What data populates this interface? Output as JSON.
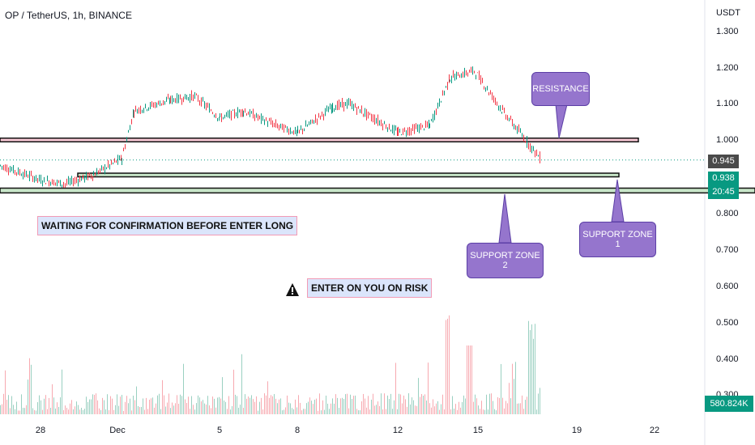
{
  "header": {
    "title": "OP / TetherUS, 1h, BINANCE"
  },
  "axis": {
    "unit": "USDT",
    "y_ticks": [
      "1.300",
      "1.200",
      "1.100",
      "1.000",
      "0.800",
      "0.700",
      "0.600",
      "0.500",
      "0.400",
      "0.300"
    ],
    "x_ticks": [
      "28",
      "Dec",
      "5",
      "8",
      "12",
      "15",
      "19",
      "22"
    ]
  },
  "badges": {
    "last_price": "0.945",
    "current_price": "0.938",
    "countdown": "20:45",
    "volume": "580.824K"
  },
  "callouts": {
    "resistance": "RESISTANCE",
    "support1": "SUPPORT ZONE 1",
    "support2": "SUPPORT ZONE 2"
  },
  "notes": {
    "waiting": "WAITING FOR CONFIRMATION BEFORE ENTER LONG",
    "risk": "ENTER ON YOU ON RISK"
  },
  "colors": {
    "up": "#089981",
    "down": "#f23645",
    "resistance_zone": "#f8c8d4",
    "support_zone": "#c8e6c9",
    "callout": "#9575cd",
    "dark_badge": "#4a4a4a"
  },
  "chart_data": {
    "type": "line",
    "title": "OP / TetherUS, 1h, BINANCE",
    "ylabel": "USDT",
    "ylim": [
      0.28,
      1.33
    ],
    "x_categories": [
      "28",
      "Dec",
      "5",
      "8",
      "12",
      "15",
      "19",
      "22"
    ],
    "series": [
      {
        "x": [
          "27",
          "28",
          "29",
          "30",
          "Dec",
          "2",
          "3",
          "4",
          "5",
          "6",
          "7",
          "8",
          "9",
          "10",
          "11",
          "12",
          "13",
          "14",
          "15",
          "16",
          "17"
        ],
        "values": [
          0.93,
          0.89,
          0.88,
          0.905,
          0.95,
          1.08,
          1.11,
          1.12,
          1.06,
          1.08,
          1.04,
          1.02,
          1.09,
          1.1,
          1.06,
          1.02,
          1.04,
          1.17,
          1.19,
          1.08,
          0.945
        ]
      }
    ],
    "zones": [
      {
        "label": "RESISTANCE",
        "from": 0.995,
        "to": 1.005
      },
      {
        "label": "SUPPORT ZONE 1",
        "from": 0.899,
        "to": 0.909
      },
      {
        "label": "SUPPORT ZONE 2",
        "from": 0.855,
        "to": 0.868
      }
    ],
    "volume": {
      "last": "580.824K"
    }
  }
}
